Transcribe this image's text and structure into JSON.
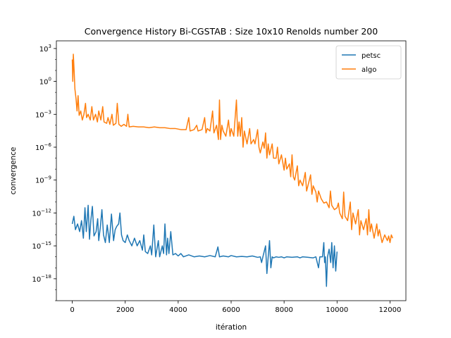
{
  "chart_data": {
    "type": "line",
    "title": "Convergence History Bi-CGSTAB : Size 10x10 Renolds number 200",
    "xlabel": "itération",
    "ylabel": "convergence",
    "xlim": [
      -600,
      12600
    ],
    "ylim": [
      1e-20,
      5000.0
    ],
    "yscale": "log",
    "xticks": [
      0,
      2000,
      4000,
      6000,
      8000,
      10000,
      12000
    ],
    "xtick_labels": [
      "0",
      "2000",
      "4000",
      "6000",
      "8000",
      "10000",
      "12000"
    ],
    "yticks": [
      {
        "value": 1000.0,
        "mantissa": "10",
        "exp": "3"
      },
      {
        "value": 1.0,
        "mantissa": "10",
        "exp": "0"
      },
      {
        "value": 0.001,
        "mantissa": "10",
        "exp": "−3"
      },
      {
        "value": 1e-06,
        "mantissa": "10",
        "exp": "−6"
      },
      {
        "value": 1e-09,
        "mantissa": "10",
        "exp": "−9"
      },
      {
        "value": 1e-12,
        "mantissa": "10",
        "exp": "−12"
      },
      {
        "value": 1e-15,
        "mantissa": "10",
        "exp": "−15"
      },
      {
        "value": 1e-18,
        "mantissa": "10",
        "exp": "−18"
      }
    ],
    "legend_position": "top-right",
    "series": [
      {
        "name": "petsc",
        "color": "#1f77b4",
        "points": [
          [
            0,
            1e-13
          ],
          [
            60,
            5e-13
          ],
          [
            120,
            3e-14
          ],
          [
            200,
            1e-13
          ],
          [
            280,
            2e-14
          ],
          [
            350,
            2e-13
          ],
          [
            420,
            5e-15
          ],
          [
            480,
            3e-12
          ],
          [
            530,
            2e-14
          ],
          [
            600,
            5e-12
          ],
          [
            650,
            4e-15
          ],
          [
            700,
            2e-13
          ],
          [
            760,
            4e-12
          ],
          [
            820,
            8e-15
          ],
          [
            900,
            2e-14
          ],
          [
            960,
            3e-13
          ],
          [
            1000,
            3e-15
          ],
          [
            1060,
            5e-14
          ],
          [
            1120,
            2e-12
          ],
          [
            1180,
            1e-14
          ],
          [
            1250,
            2e-15
          ],
          [
            1320,
            8e-14
          ],
          [
            1400,
            2e-15
          ],
          [
            1480,
            8e-13
          ],
          [
            1560,
            3e-15
          ],
          [
            1620,
            3e-14
          ],
          [
            1680,
            6e-14
          ],
          [
            1750,
            1e-13
          ],
          [
            1800,
            1e-12
          ],
          [
            1860,
            1e-14
          ],
          [
            1920,
            3e-15
          ],
          [
            2000,
            2e-15
          ],
          [
            2080,
            1e-14
          ],
          [
            2150,
            3e-15
          ],
          [
            2250,
            1e-15
          ],
          [
            2350,
            5e-15
          ],
          [
            2450,
            1e-15
          ],
          [
            2550,
            3e-15
          ],
          [
            2650,
            4e-16
          ],
          [
            2700,
            1e-14
          ],
          [
            2760,
            3e-16
          ],
          [
            2850,
            2e-16
          ],
          [
            2950,
            1e-15
          ],
          [
            3000,
            1.5e-16
          ],
          [
            3080,
            8e-14
          ],
          [
            3150,
            1e-16
          ],
          [
            3250,
            3e-15
          ],
          [
            3300,
            1e-16
          ],
          [
            3400,
            1e-15
          ],
          [
            3450,
            2e-16
          ],
          [
            3500,
            1e-13
          ],
          [
            3560,
            1.5e-16
          ],
          [
            3600,
            5e-15
          ],
          [
            3650,
            2e-16
          ],
          [
            3720,
            2e-14
          ],
          [
            3800,
            1.5e-16
          ],
          [
            3900,
            2e-16
          ],
          [
            4000,
            1.2e-16
          ],
          [
            4100,
            2e-16
          ],
          [
            4200,
            1e-16
          ],
          [
            4400,
            1.5e-16
          ],
          [
            4600,
            1e-16
          ],
          [
            4800,
            1.2e-16
          ],
          [
            5000,
            1e-16
          ],
          [
            5200,
            1.3e-16
          ],
          [
            5400,
            1e-16
          ],
          [
            5500,
            8e-16
          ],
          [
            5560,
            1e-16
          ],
          [
            5700,
            1.2e-16
          ],
          [
            5900,
            1e-16
          ],
          [
            6000,
            1.3e-16
          ],
          [
            6200,
            1e-16
          ],
          [
            6400,
            1.1e-16
          ],
          [
            6600,
            1e-16
          ],
          [
            6800,
            1.2e-16
          ],
          [
            7000,
            9e-17
          ],
          [
            7100,
            1e-16
          ],
          [
            7150,
            3e-17
          ],
          [
            7200,
            1e-16
          ],
          [
            7300,
            1e-15
          ],
          [
            7350,
            3e-18
          ],
          [
            7400,
            1e-16
          ],
          [
            7450,
            3e-15
          ],
          [
            7500,
            1e-17
          ],
          [
            7550,
            1e-16
          ],
          [
            7600,
            8e-17
          ],
          [
            7700,
            1e-16
          ],
          [
            7800,
            9e-17
          ],
          [
            7900,
            1e-16
          ],
          [
            8000,
            8e-17
          ],
          [
            8100,
            1e-16
          ],
          [
            8300,
            9e-17
          ],
          [
            8500,
            1e-16
          ],
          [
            8600,
            8e-17
          ],
          [
            8700,
            1e-16
          ],
          [
            8900,
            9e-17
          ],
          [
            9100,
            8e-17
          ],
          [
            9200,
            1e-16
          ],
          [
            9300,
            1e-17
          ],
          [
            9350,
            1e-16
          ],
          [
            9450,
            1e-16
          ],
          [
            9500,
            2e-15
          ],
          [
            9530,
            3e-17
          ],
          [
            9560,
            1e-16
          ],
          [
            9600,
            2e-19
          ],
          [
            9640,
            1e-16
          ],
          [
            9700,
            5e-16
          ],
          [
            9760,
            3e-17
          ],
          [
            9800,
            2e-15
          ],
          [
            9850,
            1e-17
          ],
          [
            9900,
            1e-15
          ],
          [
            9950,
            5e-18
          ],
          [
            10000,
            3e-16
          ]
        ]
      },
      {
        "name": "algo",
        "color": "#ff7f0e",
        "points": [
          [
            0,
            100.0
          ],
          [
            20,
            1.0
          ],
          [
            40,
            300.0
          ],
          [
            70,
            10.0
          ],
          [
            100,
            0.2
          ],
          [
            140,
            0.03
          ],
          [
            180,
            0.002
          ],
          [
            220,
            0.05
          ],
          [
            260,
            0.0008
          ],
          [
            320,
            0.002
          ],
          [
            380,
            0.0003
          ],
          [
            440,
            0.001
          ],
          [
            500,
            0.01
          ],
          [
            540,
            0.0005
          ],
          [
            600,
            0.001
          ],
          [
            680,
            0.0003
          ],
          [
            740,
            0.005
          ],
          [
            800,
            0.0003
          ],
          [
            880,
            0.001
          ],
          [
            950,
            0.0002
          ],
          [
            1000,
            0.002
          ],
          [
            1080,
            0.0003
          ],
          [
            1150,
            0.005
          ],
          [
            1200,
            0.0002
          ],
          [
            1300,
            0.00015
          ],
          [
            1350,
            0.0005
          ],
          [
            1420,
            0.00012
          ],
          [
            1500,
            0.001
          ],
          [
            1550,
            0.0001
          ],
          [
            1650,
            0.00015
          ],
          [
            1700,
            0.01
          ],
          [
            1760,
            0.00012
          ],
          [
            1850,
            8e-05
          ],
          [
            1950,
            0.00012
          ],
          [
            2050,
            8e-05
          ],
          [
            2100,
            0.001
          ],
          [
            2150,
            7e-05
          ],
          [
            2300,
            8e-05
          ],
          [
            2500,
            7e-05
          ],
          [
            2700,
            7e-05
          ],
          [
            2900,
            6e-05
          ],
          [
            3100,
            7e-05
          ],
          [
            3300,
            6e-05
          ],
          [
            3500,
            6e-05
          ],
          [
            3700,
            5e-05
          ],
          [
            3900,
            5e-05
          ],
          [
            4100,
            4e-05
          ],
          [
            4300,
            4e-05
          ],
          [
            4400,
            0.0005
          ],
          [
            4450,
            3e-05
          ],
          [
            4600,
            4e-05
          ],
          [
            4700,
            0.0001
          ],
          [
            4750,
            3e-05
          ],
          [
            4900,
            4e-05
          ],
          [
            5000,
            0.0005
          ],
          [
            5050,
            2e-05
          ],
          [
            5100,
            5e-05
          ],
          [
            5200,
            3e-05
          ],
          [
            5300,
            0.002
          ],
          [
            5350,
            2e-05
          ],
          [
            5450,
            0.0001
          ],
          [
            5520,
            5e-06
          ],
          [
            5560,
            0.02
          ],
          [
            5600,
            5e-06
          ],
          [
            5650,
            0.0001
          ],
          [
            5700,
            3e-05
          ],
          [
            5800,
            1e-05
          ],
          [
            5900,
            0.0003
          ],
          [
            5960,
            1e-05
          ],
          [
            6000,
            5e-05
          ],
          [
            6100,
            1e-05
          ],
          [
            6200,
            0.02
          ],
          [
            6250,
            1e-05
          ],
          [
            6300,
            0.0002
          ],
          [
            6350,
            1e-05
          ],
          [
            6400,
            0.0005
          ],
          [
            6450,
            1e-06
          ],
          [
            6500,
            3e-05
          ],
          [
            6600,
            2e-06
          ],
          [
            6700,
            5e-05
          ],
          [
            6750,
            2e-06
          ],
          [
            6850,
            5e-06
          ],
          [
            6900,
            2e-06
          ],
          [
            7000,
            4e-05
          ],
          [
            7050,
            1e-06
          ],
          [
            7100,
            3e-07
          ],
          [
            7200,
            3e-06
          ],
          [
            7250,
            8e-07
          ],
          [
            7300,
            2e-05
          ],
          [
            7350,
            1e-07
          ],
          [
            7400,
            2e-06
          ],
          [
            7450,
            2e-07
          ],
          [
            7550,
            2e-06
          ],
          [
            7600,
            1e-07
          ],
          [
            7700,
            1e-07
          ],
          [
            7750,
            1e-06
          ],
          [
            7800,
            3e-08
          ],
          [
            7900,
            2e-07
          ],
          [
            8000,
            8e-09
          ],
          [
            8050,
            1e-07
          ],
          [
            8100,
            1e-08
          ],
          [
            8200,
            3e-08
          ],
          [
            8250,
            2e-09
          ],
          [
            8300,
            2e-07
          ],
          [
            8350,
            2e-09
          ],
          [
            8400,
            1e-09
          ],
          [
            8500,
            2e-08
          ],
          [
            8550,
            3e-10
          ],
          [
            8600,
            1e-09
          ],
          [
            8700,
            3e-10
          ],
          [
            8800,
            5e-09
          ],
          [
            8850,
            1e-10
          ],
          [
            8900,
            3e-10
          ],
          [
            9000,
            3e-09
          ],
          [
            9050,
            5e-11
          ],
          [
            9100,
            3e-10
          ],
          [
            9200,
            8e-11
          ],
          [
            9250,
            1e-11
          ],
          [
            9300,
            1e-10
          ],
          [
            9400,
            2e-11
          ],
          [
            9500,
            8e-12
          ],
          [
            9600,
            1e-11
          ],
          [
            9700,
            3e-12
          ],
          [
            9750,
            1e-10
          ],
          [
            9800,
            5e-12
          ],
          [
            9900,
            2e-12
          ],
          [
            10000,
            3e-12
          ],
          [
            10050,
            8e-12
          ],
          [
            10100,
            1e-12
          ],
          [
            10200,
            3e-13
          ],
          [
            10250,
            8e-11
          ],
          [
            10300,
            5e-13
          ],
          [
            10400,
            2e-13
          ],
          [
            10500,
            1e-11
          ],
          [
            10550,
            3e-14
          ],
          [
            10600,
            1e-12
          ],
          [
            10700,
            1e-13
          ],
          [
            10800,
            2e-12
          ],
          [
            10850,
            1e-14
          ],
          [
            10900,
            2e-13
          ],
          [
            11000,
            3e-14
          ],
          [
            11100,
            3e-13
          ],
          [
            11150,
            1e-14
          ],
          [
            11200,
            2e-12
          ],
          [
            11250,
            2e-14
          ],
          [
            11300,
            1e-13
          ],
          [
            11400,
            5e-15
          ],
          [
            11500,
            1e-13
          ],
          [
            11550,
            8e-15
          ],
          [
            11600,
            3e-14
          ],
          [
            11700,
            2e-15
          ],
          [
            11800,
            1e-14
          ],
          [
            11900,
            3e-15
          ],
          [
            11950,
            8e-15
          ],
          [
            12000,
            2e-15
          ],
          [
            12050,
            1e-14
          ],
          [
            12100,
            5e-15
          ]
        ]
      }
    ]
  }
}
